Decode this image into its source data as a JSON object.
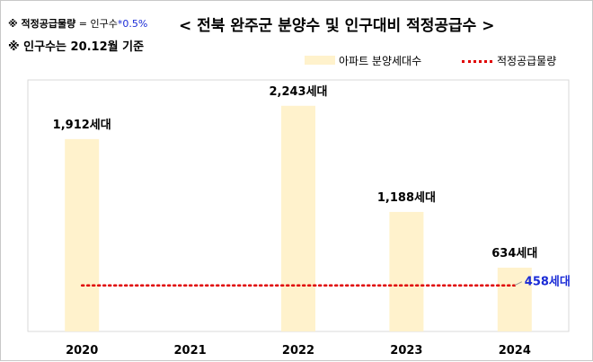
{
  "notes": {
    "formula_prefix": "※ 적정공급물량",
    "formula_eq": " = 인구수",
    "formula_factor": "*0.5%",
    "basis": "※ 인구수는 20.12월 기준"
  },
  "chart_data": {
    "type": "bar",
    "title": "< 전북 완주군 분양수 및 인구대비 적정공급수 >",
    "categories": [
      "2020",
      "2021",
      "2022",
      "2023",
      "2024"
    ],
    "series": [
      {
        "name": "아파트 분양세대수",
        "type": "bar",
        "values": [
          1912,
          0,
          2243,
          1188,
          634
        ],
        "data_labels": [
          "1,912세대",
          "",
          "2,243세대",
          "1,188세대",
          "634세대"
        ],
        "color": "#fff2cc"
      },
      {
        "name": "적정공급물량",
        "type": "line",
        "style": "dotted",
        "value": 458,
        "data_label": "458세대",
        "color": "#e00000"
      }
    ],
    "ylim": [
      0,
      2500
    ],
    "grid": false,
    "legend": "top-right",
    "xlabel": "",
    "ylabel": ""
  }
}
